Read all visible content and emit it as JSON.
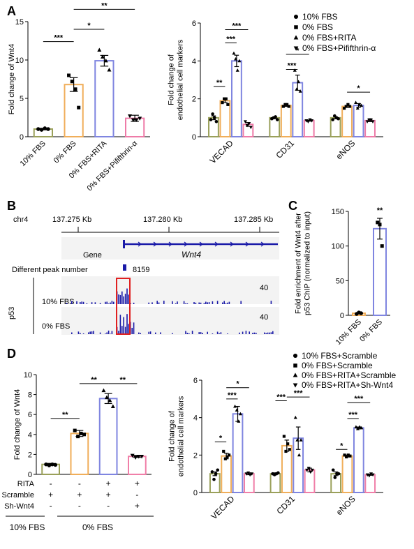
{
  "colors": {
    "c10": "#9aa05a",
    "c0": "#f0ae5a",
    "cRITA": "#7f85e0",
    "cPifi": "#ee7ba8",
    "cShRITA": "#f07fa8",
    "axis": "#000000",
    "track": "#1a1aa8",
    "highlight": "#e02020"
  },
  "labels": {
    "A": "A",
    "B": "B",
    "C": "C",
    "D": "D"
  },
  "legendA": [
    "10% FBS",
    "0% FBS",
    "0% FBS+RITA",
    "0% FBS+Pififthrin-α"
  ],
  "legendD": [
    "10% FBS+Scramble",
    "0% FBS+Scramble",
    "0% FBS+RITA+Scramble",
    "0% FBS+RITA+Sh-Wnt4"
  ],
  "chart_data": [
    {
      "id": "A-left",
      "type": "bar",
      "categories": [
        "10% FBS",
        "0% FBS",
        "0% FBS+RITA",
        "0% FBS+Pififthrin-α"
      ],
      "values": [
        1.0,
        6.8,
        9.9,
        2.4
      ],
      "errors": [
        0.1,
        0.9,
        0.7,
        0.4
      ],
      "points": [
        [
          1.0,
          0.9,
          1.1,
          1.0
        ],
        [
          8.0,
          7.2,
          6.2,
          3.8
        ],
        [
          11.3,
          10.4,
          9.9,
          8.7
        ],
        [
          2.7,
          2.2,
          2.2,
          2.4
        ]
      ],
      "ylabel": "Fold change of Wnt4",
      "ylim": [
        0,
        15
      ],
      "yticks": [
        0,
        5,
        10,
        15
      ],
      "significance": [
        {
          "from": 0,
          "to": 1,
          "label": "***"
        },
        {
          "from": 1,
          "to": 2,
          "label": "*"
        },
        {
          "from": 1,
          "to": 3,
          "label": "**"
        }
      ]
    },
    {
      "id": "A-right",
      "type": "bar",
      "groups": [
        "VECAD",
        "CD31",
        "eNOS"
      ],
      "series": [
        {
          "name": "10% FBS",
          "marker": "circle",
          "values": [
            1.0,
            1.0,
            1.0
          ],
          "errors": [
            0.1,
            0.05,
            0.05
          ],
          "points": [
            [
              0.9,
              1.2,
              1.0,
              0.8
            ],
            [
              0.95,
              1.0,
              1.05,
              0.9
            ],
            [
              0.9,
              1.1,
              1.0,
              0.95
            ]
          ]
        },
        {
          "name": "0% FBS",
          "marker": "square",
          "values": [
            1.9,
            1.65,
            1.6
          ],
          "errors": [
            0.1,
            0.05,
            0.05
          ],
          "points": [
            [
              1.8,
              2.0,
              2.0,
              1.7
            ],
            [
              1.6,
              1.7,
              1.7,
              1.6
            ],
            [
              1.5,
              1.6,
              1.7,
              1.6
            ]
          ]
        },
        {
          "name": "0% FBS+RITA",
          "marker": "triangle",
          "values": [
            4.0,
            2.85,
            1.65
          ],
          "errors": [
            0.3,
            0.4,
            0.1
          ],
          "points": [
            [
              4.4,
              4.1,
              3.5,
              4.0
            ],
            [
              3.5,
              2.5,
              2.9,
              2.4
            ],
            [
              1.8,
              1.5,
              1.7,
              1.65
            ]
          ]
        },
        {
          "name": "0% FBS+Pififthrin-α",
          "marker": "triangle-down",
          "values": [
            0.65,
            0.85,
            0.85
          ],
          "errors": [
            0.1,
            0.03,
            0.05
          ],
          "points": [
            [
              0.8,
              0.6,
              0.7,
              0.5
            ],
            [
              0.85,
              0.8,
              0.9,
              0.85
            ],
            [
              0.8,
              0.9,
              0.9,
              0.8
            ]
          ]
        }
      ],
      "ylabel": "Fold change of\nendothelial cell markers",
      "ylim": [
        0,
        6
      ],
      "yticks": [
        0,
        2,
        4,
        6
      ],
      "significance": [
        {
          "group": 0,
          "from": 0,
          "to": 1,
          "label": "**"
        },
        {
          "group": 0,
          "from": 1,
          "to": 2,
          "label": "***"
        },
        {
          "group": 0,
          "from": 1,
          "to": 3,
          "label": "***"
        },
        {
          "group": 1,
          "from": 1,
          "to": 2,
          "label": "***"
        },
        {
          "group": 1,
          "from": 1,
          "to": 3,
          "label": "*"
        },
        {
          "group": 2,
          "from": 1,
          "to": 3,
          "label": "*"
        }
      ]
    },
    {
      "id": "C",
      "type": "bar",
      "categories": [
        "10% FBS",
        "0% FBS"
      ],
      "values": [
        3,
        125
      ],
      "errors": [
        0.5,
        15
      ],
      "points": [
        [
          2,
          4,
          3
        ],
        [
          134,
          131,
          100
        ]
      ],
      "ylabel": "Fold enrichment of Wnt4 after\np53 ChIP (normalized to input)",
      "ylim": [
        0,
        150
      ],
      "yticks": [
        0,
        50,
        100,
        150
      ],
      "significance": [
        {
          "over": 1,
          "label": "**"
        }
      ]
    },
    {
      "id": "D-left",
      "type": "bar",
      "categories": [
        "10% FBS+Scramble",
        "0% FBS+Scramble",
        "0% FBS+RITA+Scramble",
        "0% FBS+RITA+Sh-Wnt4"
      ],
      "values": [
        1.0,
        4.1,
        7.6,
        1.8
      ],
      "errors": [
        0.1,
        0.3,
        0.5,
        0.1
      ],
      "points": [
        [
          1.0,
          0.9,
          1.0,
          0.95
        ],
        [
          4.4,
          3.8,
          4.1,
          4.0
        ],
        [
          8.4,
          7.7,
          7.4,
          6.8
        ],
        [
          1.9,
          1.7,
          1.8,
          1.8
        ]
      ],
      "ylabel": "Fold change of Wnt4",
      "ylim": [
        0,
        10
      ],
      "yticks": [
        0,
        2,
        4,
        6,
        8,
        10
      ],
      "significance": [
        {
          "from": 0,
          "to": 1,
          "label": "**"
        },
        {
          "from": 1,
          "to": 2,
          "label": "**"
        },
        {
          "from": 2,
          "to": 3,
          "label": "**"
        }
      ],
      "conditions": {
        "rows": [
          "RITA",
          "Scramble",
          "Sh-Wnt4"
        ],
        "values": [
          [
            "-",
            "-",
            "+",
            "+"
          ],
          [
            "+",
            "+",
            "+",
            "-"
          ],
          [
            "-",
            "-",
            "-",
            "+"
          ]
        ],
        "groups": [
          "10% FBS",
          "0% FBS"
        ]
      }
    },
    {
      "id": "D-right",
      "type": "bar",
      "groups": [
        "VECAD",
        "CD31",
        "eNOS"
      ],
      "series": [
        {
          "name": "10% FBS+Scramble",
          "marker": "circle",
          "values": [
            1.0,
            1.0,
            1.0
          ],
          "errors": [
            0.1,
            0.05,
            0.1
          ],
          "points": [
            [
              1.1,
              0.7,
              1.0,
              1.2
            ],
            [
              1.0,
              0.95,
              1.0,
              1.05
            ],
            [
              1.2,
              0.8,
              1.0,
              1.0
            ]
          ]
        },
        {
          "name": "0% FBS+Scramble",
          "marker": "square",
          "values": [
            1.95,
            2.5,
            1.95
          ],
          "errors": [
            0.15,
            0.3,
            0.05
          ],
          "points": [
            [
              2.2,
              1.8,
              1.9,
              2.0
            ],
            [
              3.0,
              2.2,
              2.6,
              2.3
            ],
            [
              2.0,
              1.9,
              2.0,
              1.95
            ]
          ]
        },
        {
          "name": "0% FBS+RITA+Scramble",
          "marker": "triangle",
          "values": [
            4.2,
            2.9,
            3.45
          ],
          "errors": [
            0.4,
            0.6,
            0.05
          ],
          "points": [
            [
              4.6,
              4.4,
              3.8,
              4.2
            ],
            [
              4.0,
              2.8,
              2.0,
              2.8
            ],
            [
              3.5,
              3.4,
              3.5,
              3.45
            ]
          ]
        },
        {
          "name": "0% FBS+RITA+Sh-Wnt4",
          "marker": "triangle-down",
          "values": [
            1.0,
            1.2,
            0.95
          ],
          "errors": [
            0.05,
            0.1,
            0.03
          ],
          "points": [
            [
              1.0,
              1.05,
              0.95,
              1.0
            ],
            [
              1.2,
              1.3,
              1.1,
              1.2
            ],
            [
              0.95,
              0.9,
              1.0,
              0.95
            ]
          ]
        }
      ],
      "ylabel": "Fold change of\nendothelial cell markers",
      "ylim": [
        0,
        6
      ],
      "yticks": [
        0,
        2,
        4,
        6
      ],
      "significance": [
        {
          "group": 0,
          "from": 0,
          "to": 1,
          "label": "*"
        },
        {
          "group": 0,
          "from": 1,
          "to": 2,
          "label": "***"
        },
        {
          "group": 0,
          "from": 1,
          "to": 3,
          "label": "*"
        },
        {
          "group": 1,
          "from": 0,
          "to": 1,
          "label": "***"
        },
        {
          "group": 1,
          "from": 1,
          "to": 3,
          "label": "***"
        },
        {
          "group": 2,
          "from": 0,
          "to": 1,
          "label": "*"
        },
        {
          "group": 2,
          "from": 1,
          "to": 2,
          "label": "***"
        },
        {
          "group": 2,
          "from": 1,
          "to": 3,
          "label": "***"
        }
      ]
    }
  ],
  "panelB": {
    "chrom": "chr4",
    "ticks": [
      "137.275 Kb",
      "137.280 Kb",
      "137.285 Kb"
    ],
    "gene_track_label": "Gene",
    "gene_name": "Wnt4",
    "peak_track_label": "Different peak number",
    "peak_value": "8159",
    "factor_label": "p53",
    "tracks": [
      {
        "name": "10% FBS",
        "scale": "40"
      },
      {
        "name": "0% FBS",
        "scale": "40"
      }
    ]
  }
}
